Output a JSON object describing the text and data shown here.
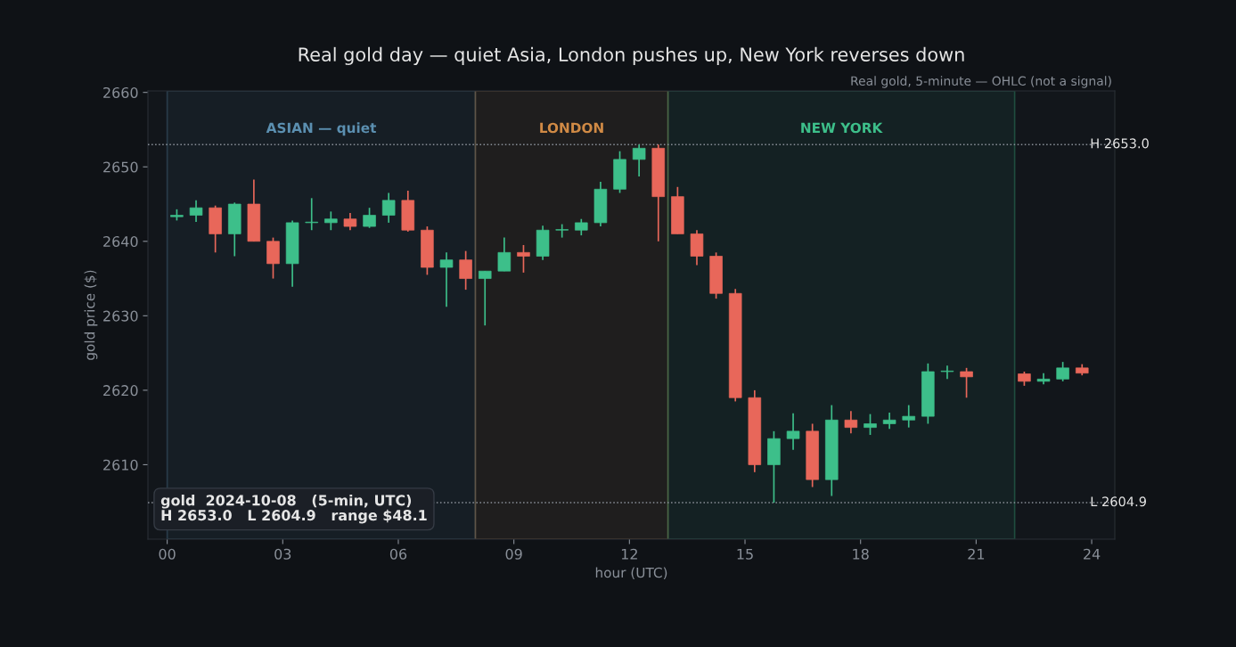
{
  "chart_data": {
    "type": "candlestick",
    "title": "Real gold day — quiet Asia, London pushes up, New York reverses down",
    "subtitle": "Real gold, 5-minute — OHLC (not a signal)",
    "xlabel": "hour (UTC)",
    "ylabel": "gold price ($)",
    "annotations": [
      "gold  2024-10-08   (5-min, UTC)\nH 2653.0   L 2604.9   range $48.1"
    ],
    "x": [
      0.25,
      0.75,
      1.25,
      1.75,
      2.25,
      2.75,
      3.25,
      3.75,
      4.25,
      4.75,
      5.25,
      5.75,
      6.25,
      6.75,
      7.25,
      7.75,
      8.25,
      8.75,
      9.25,
      9.75,
      10.25,
      10.75,
      11.25,
      11.75,
      12.25,
      12.75,
      13.25,
      13.75,
      14.25,
      14.75,
      15.25,
      15.75,
      16.25,
      16.75,
      17.25,
      17.75,
      18.25,
      18.75,
      19.25,
      19.75,
      20.25,
      20.75,
      22.25,
      22.75,
      23.25,
      23.75
    ],
    "ohlc": [
      [
        2643.3,
        2644.3,
        2642.8,
        2643.5
      ],
      [
        2643.5,
        2645.5,
        2642.6,
        2644.5
      ],
      [
        2644.5,
        2644.8,
        2638.5,
        2641.0
      ],
      [
        2641.0,
        2645.2,
        2638.0,
        2645.0
      ],
      [
        2645.0,
        2648.3,
        2640.0,
        2640.0
      ],
      [
        2640.0,
        2640.5,
        2635.0,
        2637.0
      ],
      [
        2637.0,
        2642.8,
        2633.9,
        2642.5
      ],
      [
        2642.5,
        2645.8,
        2641.5,
        2642.5
      ],
      [
        2642.5,
        2644.0,
        2641.5,
        2643.0
      ],
      [
        2643.0,
        2643.8,
        2641.5,
        2642.0
      ],
      [
        2642.0,
        2644.5,
        2641.8,
        2643.5
      ],
      [
        2643.5,
        2646.5,
        2642.5,
        2645.5
      ],
      [
        2645.5,
        2646.8,
        2641.3,
        2641.5
      ],
      [
        2641.5,
        2642.0,
        2635.5,
        2636.5
      ],
      [
        2636.5,
        2638.5,
        2631.2,
        2637.5
      ],
      [
        2637.5,
        2638.7,
        2633.5,
        2635.0
      ],
      [
        2635.0,
        2636.0,
        2628.7,
        2636.0
      ],
      [
        2636.0,
        2640.5,
        2636.0,
        2638.5
      ],
      [
        2638.5,
        2639.5,
        2635.8,
        2638.0
      ],
      [
        2638.0,
        2642.1,
        2637.5,
        2641.5
      ],
      [
        2641.5,
        2642.3,
        2640.5,
        2641.5
      ],
      [
        2641.5,
        2643.0,
        2640.8,
        2642.5
      ],
      [
        2642.5,
        2648.0,
        2642.0,
        2647.0
      ],
      [
        2647.0,
        2652.1,
        2646.5,
        2651.0
      ],
      [
        2651.0,
        2653.0,
        2648.7,
        2652.5
      ],
      [
        2652.5,
        2653.0,
        2640.0,
        2646.0
      ],
      [
        2646.0,
        2647.3,
        2641.0,
        2641.0
      ],
      [
        2641.0,
        2641.5,
        2636.8,
        2638.0
      ],
      [
        2638.0,
        2638.5,
        2632.3,
        2633.0
      ],
      [
        2633.0,
        2633.6,
        2618.5,
        2619.0
      ],
      [
        2619.0,
        2620.0,
        2609.0,
        2610.0
      ],
      [
        2610.0,
        2614.5,
        2604.9,
        2613.5
      ],
      [
        2613.5,
        2616.9,
        2612.0,
        2614.5
      ],
      [
        2614.5,
        2615.5,
        2607.0,
        2608.0
      ],
      [
        2608.0,
        2618.0,
        2605.8,
        2616.0
      ],
      [
        2616.0,
        2617.2,
        2614.2,
        2615.0
      ],
      [
        2615.0,
        2616.8,
        2614.0,
        2615.5
      ],
      [
        2615.5,
        2617.0,
        2614.8,
        2616.0
      ],
      [
        2616.0,
        2618.0,
        2615.0,
        2616.5
      ],
      [
        2616.5,
        2623.6,
        2615.5,
        2622.5
      ],
      [
        2622.5,
        2623.3,
        2621.5,
        2622.5
      ],
      [
        2622.5,
        2623.0,
        2619.0,
        2621.8
      ],
      [
        2622.2,
        2622.5,
        2620.6,
        2621.2
      ],
      [
        2621.2,
        2622.3,
        2620.8,
        2621.5
      ],
      [
        2621.5,
        2623.8,
        2621.2,
        2623.0
      ],
      [
        2623.0,
        2623.5,
        2622.0,
        2622.3
      ]
    ],
    "colors": [
      "#3dbf8a",
      "#3dbf8a",
      "#e8675a",
      "#3dbf8a",
      "#e8675a",
      "#e8675a",
      "#3dbf8a",
      "#3dbf8a",
      "#3dbf8a",
      "#e8675a",
      "#3dbf8a",
      "#3dbf8a",
      "#e8675a",
      "#e8675a",
      "#3dbf8a",
      "#e8675a",
      "#3dbf8a",
      "#3dbf8a",
      "#e8675a",
      "#3dbf8a",
      "#3dbf8a",
      "#3dbf8a",
      "#3dbf8a",
      "#3dbf8a",
      "#3dbf8a",
      "#e8675a",
      "#e8675a",
      "#e8675a",
      "#e8675a",
      "#e8675a",
      "#e8675a",
      "#3dbf8a",
      "#3dbf8a",
      "#e8675a",
      "#3dbf8a",
      "#e8675a",
      "#3dbf8a",
      "#3dbf8a",
      "#3dbf8a",
      "#3dbf8a",
      "#3dbf8a",
      "#e8675a",
      "#e8675a",
      "#3dbf8a",
      "#3dbf8a",
      "#e8675a"
    ],
    "xlim": [
      -0.5,
      24.6
    ],
    "ylim": [
      2600,
      2660.2
    ],
    "xticks": [
      {
        "value": 0,
        "label": "00"
      },
      {
        "value": 3,
        "label": "03"
      },
      {
        "value": 6,
        "label": "06"
      },
      {
        "value": 9,
        "label": "09"
      },
      {
        "value": 12,
        "label": "12"
      },
      {
        "value": 15,
        "label": "15"
      },
      {
        "value": 18,
        "label": "18"
      },
      {
        "value": 21,
        "label": "21"
      },
      {
        "value": 24,
        "label": "24"
      }
    ],
    "yticks": [
      2610,
      2620,
      2630,
      2640,
      2650,
      2660
    ],
    "bands": [
      {
        "axis": "x",
        "from": 0,
        "to": 8,
        "label": "ASIAN — quiet",
        "color": "#5b8fb0"
      },
      {
        "axis": "x",
        "from": 8,
        "to": 13,
        "label": "LONDON",
        "color": "#d08a45"
      },
      {
        "axis": "x",
        "from": 13,
        "to": 22,
        "label": "NEW YORK",
        "color": "#3dbf8a"
      }
    ],
    "ref_lines": [
      {
        "axis": "y",
        "value": 2653.0,
        "label": "H 2653.0",
        "color": "#8a9099",
        "line_style": "dotted"
      },
      {
        "axis": "y",
        "value": 2604.9,
        "label": "L 2604.9",
        "color": "#8a9099",
        "line_style": "dotted"
      }
    ],
    "grid": false,
    "legend": false
  }
}
